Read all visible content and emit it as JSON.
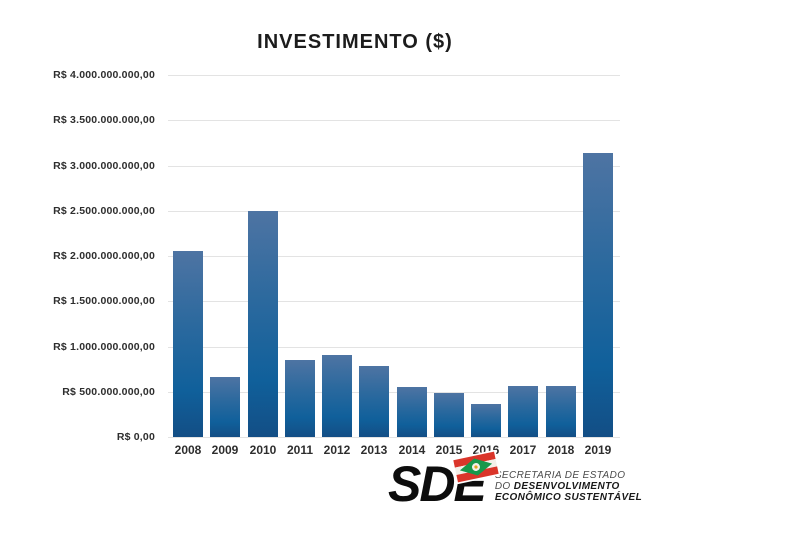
{
  "chart_data": {
    "type": "bar",
    "title": "INVESTIMENTO ($)",
    "categories": [
      "2008",
      "2009",
      "2010",
      "2011",
      "2012",
      "2013",
      "2014",
      "2015",
      "2016",
      "2017",
      "2018",
      "2019"
    ],
    "values": [
      2060000000,
      660000000,
      2500000000,
      850000000,
      910000000,
      790000000,
      550000000,
      490000000,
      360000000,
      560000000,
      560000000,
      3140000000
    ],
    "xlabel": "",
    "ylabel": "",
    "ylim": [
      0,
      4000000000
    ],
    "ytick_step": 500000000,
    "ytick_labels": [
      "R$ 0,00",
      "R$ 500.000.000,00",
      "R$ 1.000.000.000,00",
      "R$ 1.500.000.000,00",
      "R$ 2.000.000.000,00",
      "R$ 2.500.000.000,00",
      "R$ 3.000.000.000,00",
      "R$ 3.500.000.000,00",
      "R$ 4.000.000.000,00"
    ],
    "grid": true,
    "legend_position": "none",
    "bar_color_top": "#4e74a3",
    "bar_color_bottom": "#134e85",
    "gridline_color": "#e3e3e3",
    "background_color": "#ffffff"
  },
  "footer": {
    "logo_acronym": "SDE",
    "org_line1": "SECRETARIA DE ESTADO",
    "org_line2_light": "DO ",
    "org_line2_bold": "DESENVOLVIMENTO",
    "org_line3": "ECONÔMICO SUSTENTÁVEL",
    "flag_colors": {
      "red": "#da352a",
      "white": "#f3f0ea",
      "green": "#17984b",
      "yellow": "#e0a41d"
    }
  }
}
